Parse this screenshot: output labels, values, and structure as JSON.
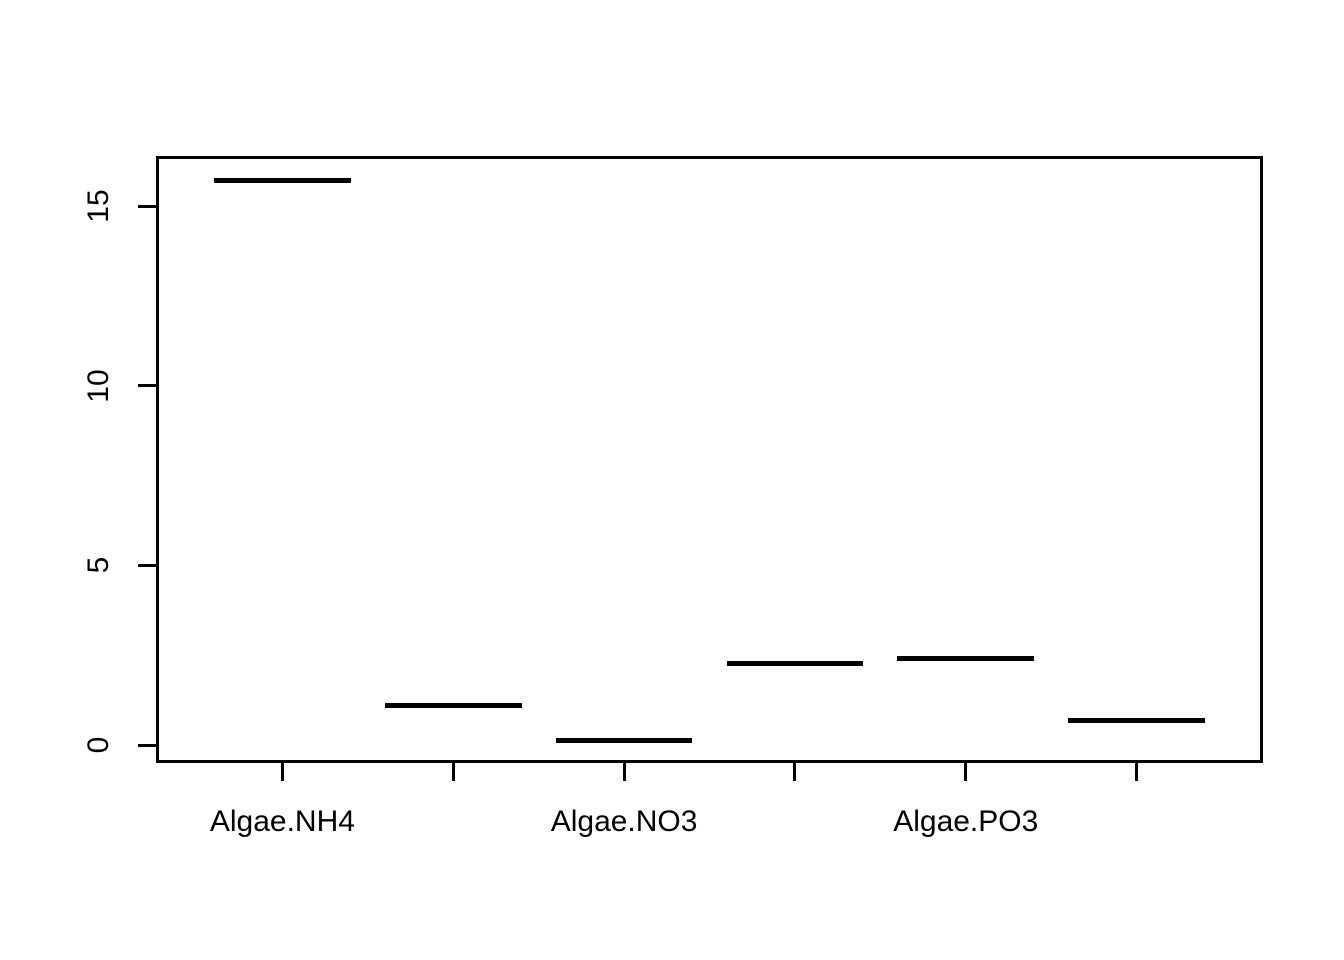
{
  "figure": {
    "background": "#ffffff",
    "foreground": "#000000"
  },
  "chart_data": {
    "type": "boxplot",
    "mark": "median-line-only",
    "title": "",
    "xlabel": "",
    "ylabel": "",
    "positions": [
      1,
      2,
      3,
      4,
      5,
      6
    ],
    "values": [
      15.72,
      1.11,
      0.14,
      2.28,
      2.42,
      0.69
    ],
    "categories": [
      "Algae.NH4",
      "",
      "Algae.NO3",
      "",
      "Algae.PO3",
      ""
    ],
    "x_tick_labels": [
      {
        "position": 1,
        "label": "Algae.NH4"
      },
      {
        "position": 3,
        "label": "Algae.NO3"
      },
      {
        "position": 5,
        "label": "Algae.PO3"
      }
    ],
    "y_axis": {
      "ticks": [
        0,
        5,
        10,
        15
      ],
      "tick_labels": [
        "0",
        "5",
        "10",
        "15"
      ]
    },
    "xlim": [
      0.26,
      6.74
    ],
    "ylim": [
      -0.5,
      16.4
    ],
    "bar_width_fraction": 0.8,
    "bar_color": "#000000",
    "axis_color": "#000000",
    "grid": false,
    "legend": "none"
  }
}
